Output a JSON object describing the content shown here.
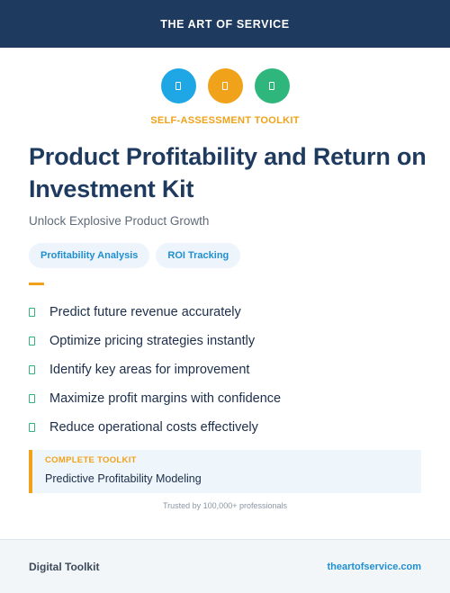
{
  "header": {
    "brand": "THE ART OF SERVICE"
  },
  "hero": {
    "icons": [
      {
        "name": "document-icon",
        "color": "#1ea7e4"
      },
      {
        "name": "document-icon",
        "color": "#f0a21a"
      },
      {
        "name": "document-icon",
        "color": "#2eb67d"
      }
    ],
    "kicker": "SELF-ASSESSMENT TOOLKIT",
    "title": "Product Profitability and Return on Investment Kit",
    "subtitle": "Unlock Explosive Product Growth"
  },
  "tags": [
    "Profitability Analysis",
    "ROI Tracking"
  ],
  "features": [
    "Predict future revenue accurately",
    "Optimize pricing strategies instantly",
    "Identify key areas for improvement",
    "Maximize profit margins with confidence",
    "Reduce operational costs effectively"
  ],
  "callout": {
    "label": "COMPLETE TOOLKIT",
    "value": "Predictive Profitability Modeling"
  },
  "trusted": "Trusted by 100,000+ professionals",
  "footer": {
    "left": "Digital Toolkit",
    "right": "theartofservice.com"
  },
  "colors": {
    "navy": "#1f3a5f",
    "accent": "#f0a21a",
    "link": "#1f8fd0",
    "check": "#2eb67d"
  }
}
